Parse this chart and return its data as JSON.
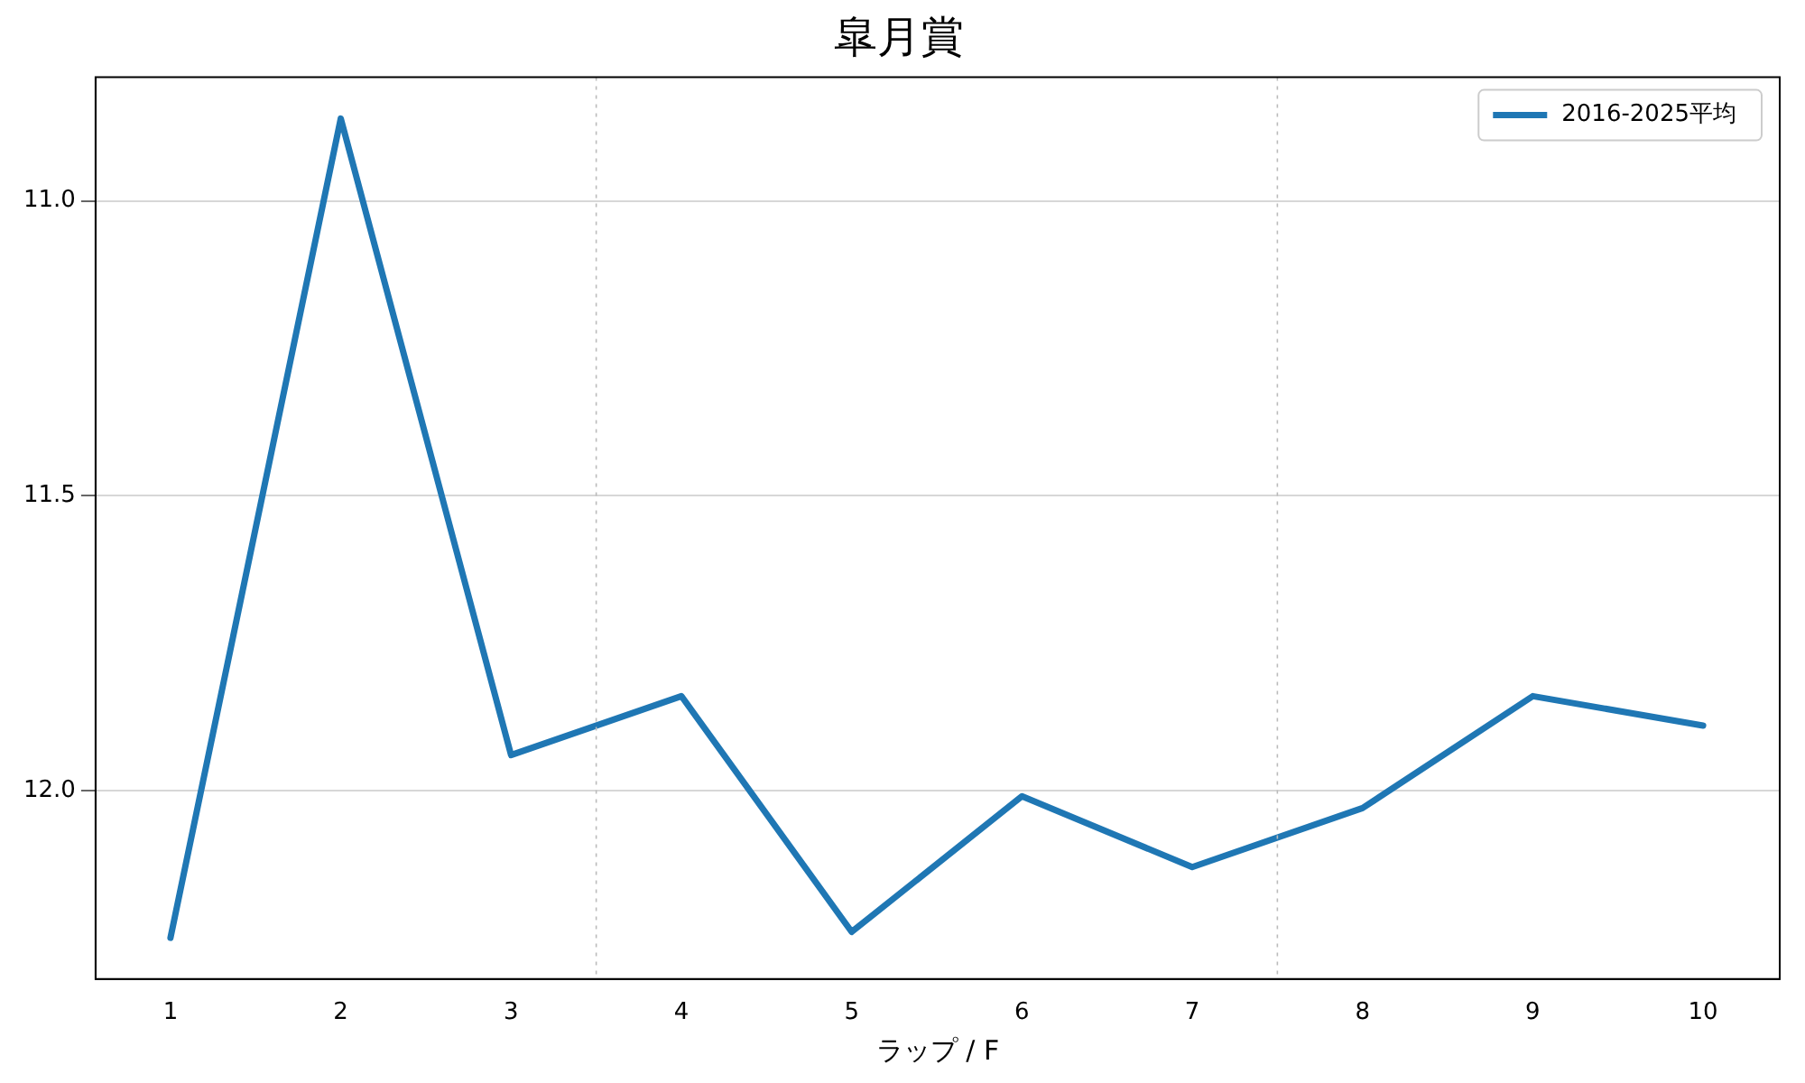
{
  "chart_data": {
    "type": "line",
    "title": "皐月賞",
    "xlabel": "ラップ / F",
    "x": [
      1,
      2,
      3,
      4,
      5,
      6,
      7,
      8,
      9,
      10
    ],
    "series": [
      {
        "name": "2016-2025平均",
        "color": "#1f77b4",
        "values": [
          12.25,
          10.86,
          11.94,
          11.84,
          12.24,
          12.01,
          12.13,
          12.03,
          11.84,
          11.89
        ]
      }
    ],
    "xlim": [
      0.56,
      10.45
    ],
    "xticks": [
      1,
      2,
      3,
      4,
      5,
      6,
      7,
      8,
      9,
      10
    ],
    "ylim": [
      12.32,
      10.79
    ],
    "yticks": [
      {
        "value": 11,
        "label": "11.0"
      },
      {
        "value": 11.5,
        "label": "11.5"
      },
      {
        "value": 12,
        "label": "12.0"
      }
    ],
    "ref_lines": [
      {
        "axis": "x",
        "value": 3.5,
        "color": "#bbbbbb",
        "line_style": "dotted"
      },
      {
        "axis": "x",
        "value": 7.5,
        "color": "#bbbbbb",
        "line_style": "dotted"
      }
    ],
    "grid": "y",
    "legend": "top right",
    "line_style": "solid",
    "marker": "none"
  }
}
